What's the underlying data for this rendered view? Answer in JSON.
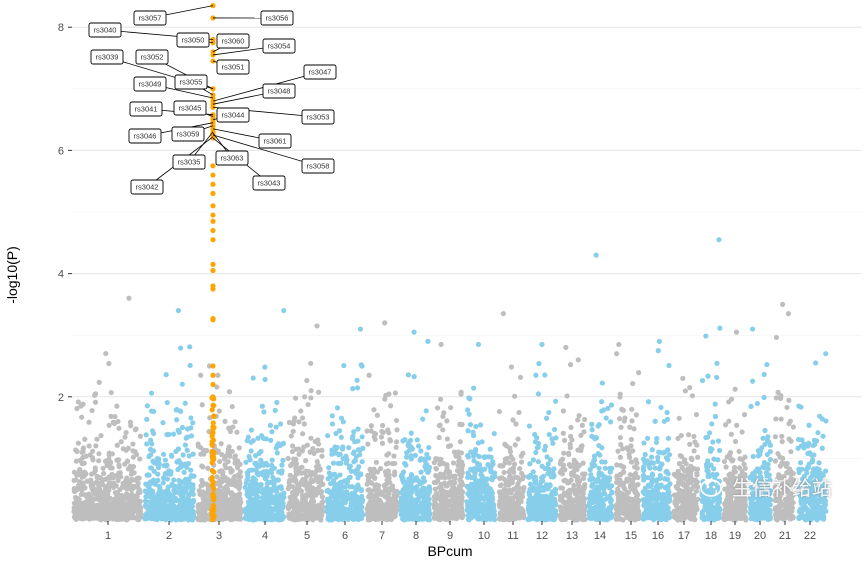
{
  "chart_data": {
    "type": "scatter",
    "subtype": "manhattan",
    "title": "",
    "xlabel": "BPcum",
    "ylabel": "-log10(P)",
    "ylim": [
      0,
      8.4
    ],
    "yticks": [
      2,
      4,
      6,
      8
    ],
    "grid": true,
    "legend": "none",
    "chromosomes": [
      "1",
      "2",
      "3",
      "4",
      "5",
      "6",
      "7",
      "8",
      "9",
      "10",
      "11",
      "12",
      "13",
      "14",
      "15",
      "16",
      "17",
      "18",
      "19",
      "20",
      "21",
      "22"
    ],
    "colors": {
      "odd": "#bebebe",
      "even": "#87ceeb",
      "highlight": "#ffa500"
    },
    "chromosome_peaks": [
      3.6,
      3.4,
      2.5,
      3.4,
      3.15,
      3.1,
      3.2,
      3.05,
      2.85,
      2.85,
      3.35,
      2.85,
      2.8,
      4.3,
      2.85,
      2.9,
      2.3,
      4.55,
      3.05,
      3.1,
      3.5,
      2.7
    ],
    "highlight_chromosome": "3",
    "highlighted_snps": [
      {
        "snp": "rs3057",
        "p": 8.35
      },
      {
        "snp": "rs3056",
        "p": 8.15
      },
      {
        "snp": "rs3040",
        "p": 7.8
      },
      {
        "snp": "rs3050",
        "p": 7.75
      },
      {
        "snp": "rs3060",
        "p": 7.6
      },
      {
        "snp": "rs3054",
        "p": 7.55
      },
      {
        "snp": "rs3051",
        "p": 7.45
      },
      {
        "snp": "rs3039",
        "p": 7.0
      },
      {
        "snp": "rs3052",
        "p": 7.0
      },
      {
        "snp": "rs3055",
        "p": 6.9
      },
      {
        "snp": "rs3049",
        "p": 6.85
      },
      {
        "snp": "rs3047",
        "p": 6.8
      },
      {
        "snp": "rs3048",
        "p": 6.75
      },
      {
        "snp": "rs3053",
        "p": 6.7
      },
      {
        "snp": "rs3041",
        "p": 6.58
      },
      {
        "snp": "rs3045",
        "p": 6.55
      },
      {
        "snp": "rs3044",
        "p": 6.5
      },
      {
        "snp": "rs3046",
        "p": 6.45
      },
      {
        "snp": "rs3059",
        "p": 6.4
      },
      {
        "snp": "rs3061",
        "p": 6.35
      },
      {
        "snp": "rs3035",
        "p": 6.3
      },
      {
        "snp": "rs3063",
        "p": 6.28
      },
      {
        "snp": "rs3058",
        "p": 6.25
      },
      {
        "snp": "rs3042",
        "p": 6.22
      },
      {
        "snp": "rs3043",
        "p": 6.2
      }
    ],
    "highlight_unlabeled": [
      5.75,
      5.6,
      5.45,
      5.3,
      5.1,
      4.95,
      4.85,
      4.7,
      4.55,
      4.15,
      4.05,
      3.8,
      3.75,
      3.27,
      3.25,
      2.5,
      2.35,
      2.2,
      2.0
    ]
  },
  "watermark": "生信补给站"
}
